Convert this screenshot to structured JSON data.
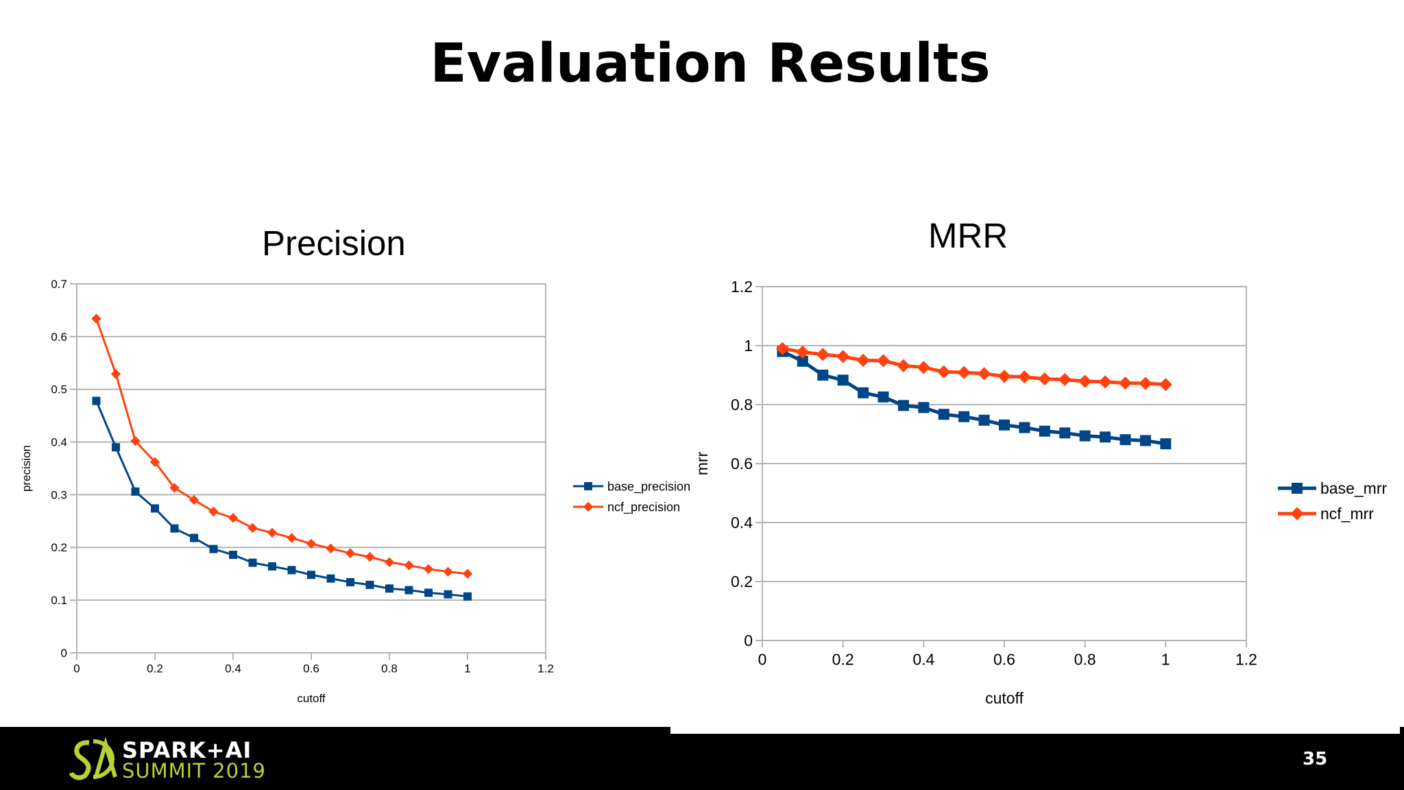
{
  "slide": {
    "title": "Evaluation Results",
    "page_number": "35",
    "logo_line1": "SPARK+AI",
    "logo_line2": "SUMMIT 2019",
    "colors": {
      "footer": "#000000",
      "logo_green": "#b5d334",
      "base_series": "#004586",
      "ncf_series": "#ff420e",
      "grid": "#b3b3b3"
    }
  },
  "chart_data": [
    {
      "type": "line",
      "title": "Precision",
      "xlabel": "cutoff",
      "ylabel": "precision",
      "xlim": [
        0,
        1.2
      ],
      "ylim": [
        0,
        0.7
      ],
      "xticks": [
        0,
        0.2,
        0.4,
        0.6,
        0.8,
        1,
        1.2
      ],
      "yticks": [
        0,
        0.1,
        0.2,
        0.3,
        0.4,
        0.5,
        0.6,
        0.7
      ],
      "grid": "horizontal",
      "legend_position": "right",
      "x": [
        0.05,
        0.1,
        0.15,
        0.2,
        0.25,
        0.3,
        0.35,
        0.4,
        0.45,
        0.5,
        0.55,
        0.6,
        0.65,
        0.7,
        0.75,
        0.8,
        0.85,
        0.9,
        0.95,
        1.0
      ],
      "series": [
        {
          "name": "base_precision",
          "marker": "square",
          "color": "#004586",
          "values": [
            0.478,
            0.39,
            0.306,
            0.274,
            0.236,
            0.218,
            0.197,
            0.186,
            0.171,
            0.164,
            0.157,
            0.148,
            0.141,
            0.134,
            0.129,
            0.122,
            0.119,
            0.114,
            0.111,
            0.107
          ]
        },
        {
          "name": "ncf_precision",
          "marker": "diamond",
          "color": "#ff420e",
          "values": [
            0.634,
            0.529,
            0.402,
            0.362,
            0.313,
            0.29,
            0.268,
            0.256,
            0.237,
            0.228,
            0.218,
            0.207,
            0.198,
            0.189,
            0.182,
            0.172,
            0.166,
            0.159,
            0.154,
            0.15
          ]
        }
      ]
    },
    {
      "type": "line",
      "title": "MRR",
      "xlabel": "cutoff",
      "ylabel": "mrr",
      "xlim": [
        0,
        1.2
      ],
      "ylim": [
        0,
        1.2
      ],
      "xticks": [
        0,
        0.2,
        0.4,
        0.6,
        0.8,
        1,
        1.2
      ],
      "yticks": [
        0,
        0.2,
        0.4,
        0.6,
        0.8,
        1,
        1.2
      ],
      "grid": "horizontal",
      "legend_position": "right",
      "x": [
        0.05,
        0.1,
        0.15,
        0.2,
        0.25,
        0.3,
        0.35,
        0.4,
        0.45,
        0.5,
        0.55,
        0.6,
        0.65,
        0.7,
        0.75,
        0.8,
        0.85,
        0.9,
        0.95,
        1.0
      ],
      "series": [
        {
          "name": "base_mrr",
          "marker": "square",
          "color": "#004586",
          "values": [
            0.98,
            0.947,
            0.9,
            0.883,
            0.84,
            0.826,
            0.797,
            0.79,
            0.767,
            0.759,
            0.747,
            0.731,
            0.722,
            0.71,
            0.704,
            0.694,
            0.69,
            0.681,
            0.678,
            0.667
          ]
        },
        {
          "name": "ncf_mrr",
          "marker": "diamond",
          "color": "#ff420e",
          "values": [
            0.99,
            0.978,
            0.97,
            0.963,
            0.95,
            0.949,
            0.932,
            0.926,
            0.911,
            0.909,
            0.905,
            0.896,
            0.894,
            0.887,
            0.885,
            0.879,
            0.877,
            0.873,
            0.872,
            0.868
          ]
        }
      ]
    }
  ]
}
